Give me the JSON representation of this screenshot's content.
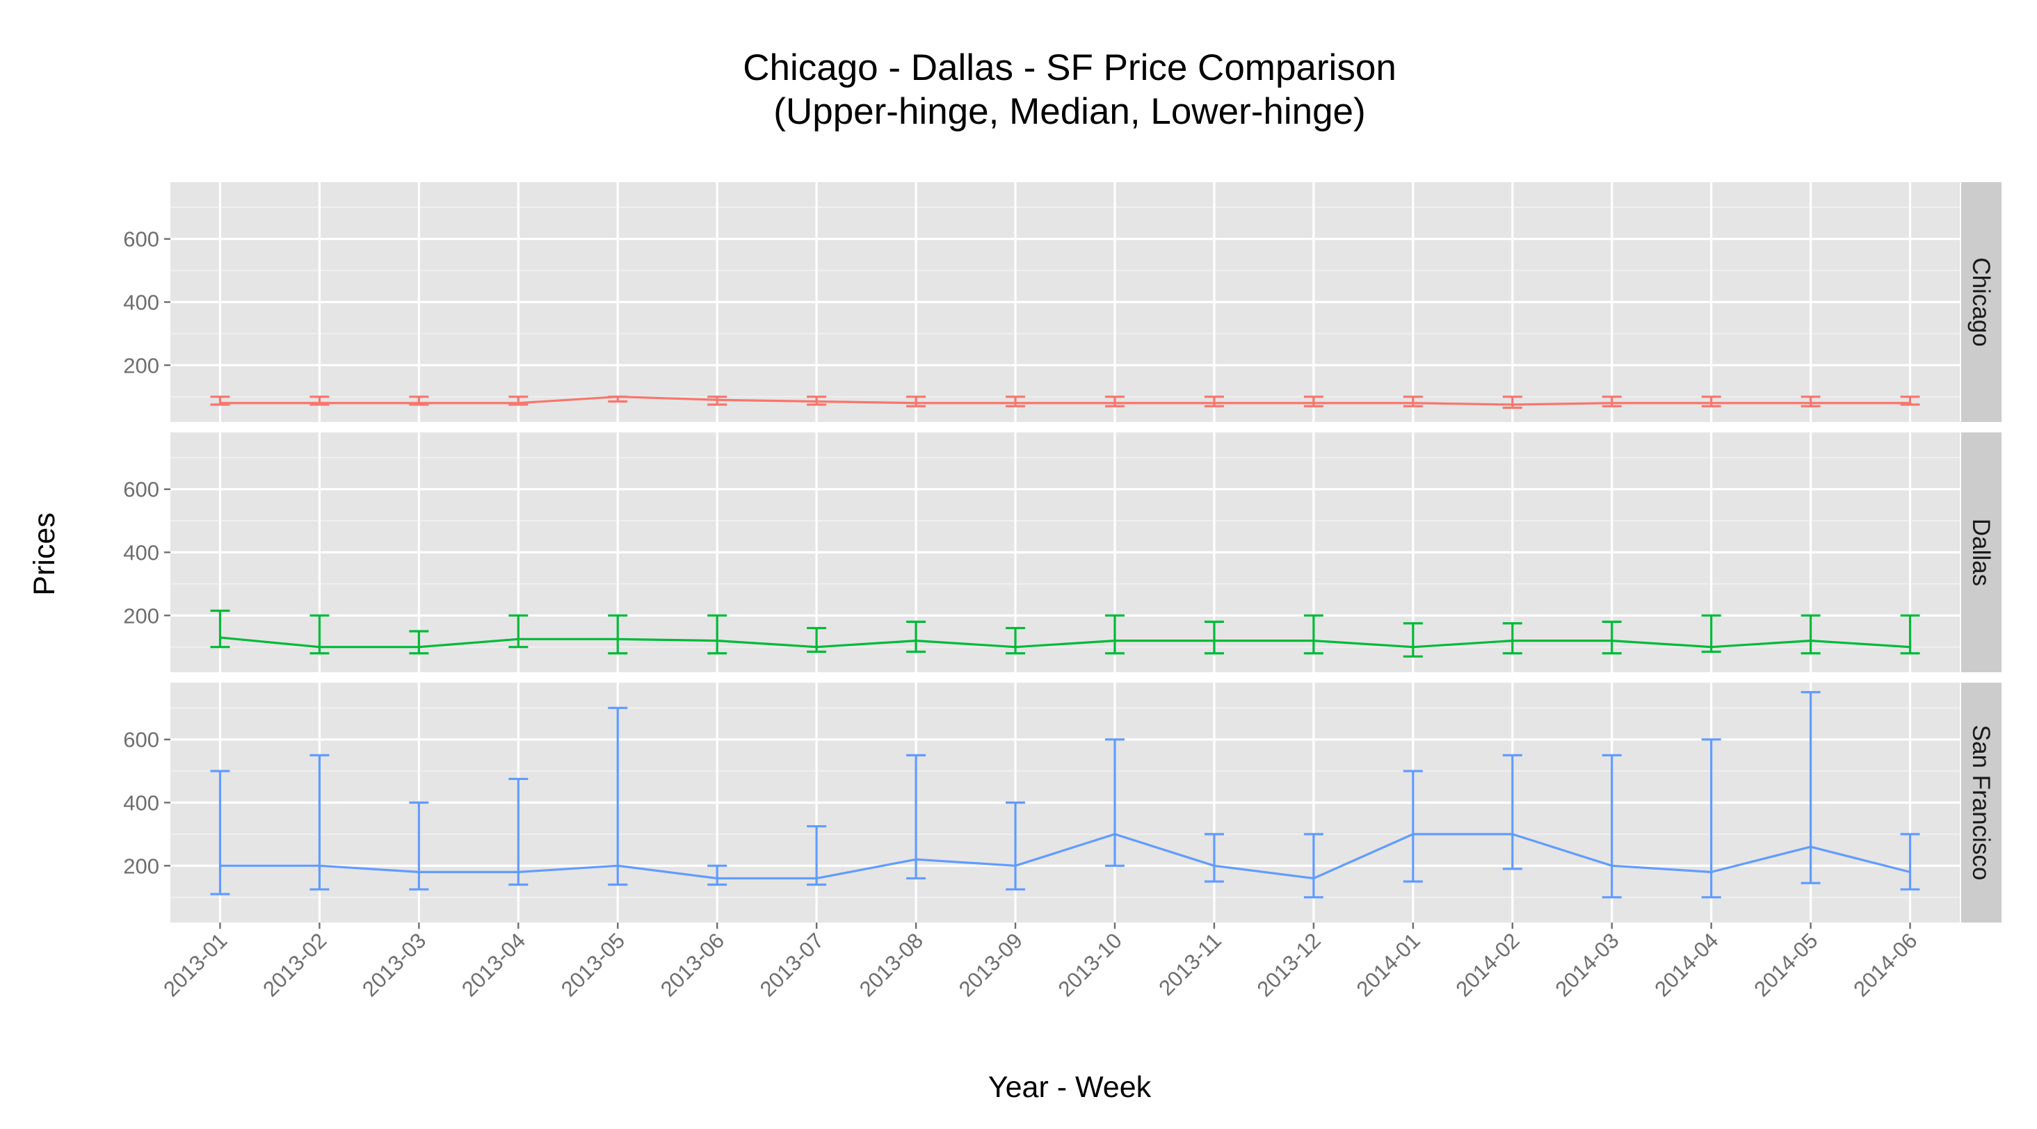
{
  "chart_data": {
    "type": "line",
    "title": "Chicago - Dallas - SF Price Comparison",
    "subtitle": "(Upper-hinge, Median, Lower-hinge)",
    "xlabel": "Year - Week",
    "ylabel": "Prices",
    "ylim": [
      20,
      780
    ],
    "y_ticks": [
      200,
      400,
      600
    ],
    "grid": true,
    "categories": [
      "2013-01",
      "2013-02",
      "2013-03",
      "2013-04",
      "2013-05",
      "2013-06",
      "2013-07",
      "2013-08",
      "2013-09",
      "2013-10",
      "2013-11",
      "2013-12",
      "2014-01",
      "2014-02",
      "2014-03",
      "2014-04",
      "2014-05",
      "2014-06"
    ],
    "facets": [
      {
        "name": "Chicago",
        "color": "#F8766D",
        "median": [
          80,
          80,
          80,
          80,
          100,
          90,
          85,
          80,
          80,
          80,
          80,
          80,
          80,
          75,
          80,
          80,
          80,
          80
        ],
        "upper_hinge": [
          100,
          100,
          100,
          100,
          100,
          100,
          100,
          100,
          100,
          100,
          100,
          100,
          100,
          100,
          100,
          100,
          100,
          100
        ],
        "lower_hinge": [
          75,
          75,
          75,
          75,
          85,
          75,
          75,
          70,
          70,
          70,
          70,
          70,
          70,
          65,
          70,
          70,
          70,
          75
        ]
      },
      {
        "name": "Dallas",
        "color": "#00BA38",
        "median": [
          130,
          100,
          100,
          125,
          125,
          120,
          100,
          120,
          100,
          120,
          120,
          120,
          100,
          120,
          120,
          100,
          120,
          100
        ],
        "upper_hinge": [
          215,
          200,
          150,
          200,
          200,
          200,
          160,
          180,
          160,
          200,
          180,
          200,
          175,
          175,
          180,
          200,
          200,
          200
        ],
        "lower_hinge": [
          100,
          80,
          80,
          100,
          80,
          80,
          85,
          85,
          80,
          80,
          80,
          80,
          70,
          80,
          80,
          85,
          80,
          80
        ]
      },
      {
        "name": "San Francisco",
        "color": "#619CFF",
        "median": [
          200,
          200,
          180,
          180,
          200,
          160,
          160,
          220,
          200,
          300,
          200,
          160,
          300,
          300,
          200,
          180,
          260,
          180
        ],
        "upper_hinge": [
          500,
          550,
          400,
          475,
          700,
          200,
          325,
          550,
          400,
          600,
          300,
          300,
          500,
          550,
          550,
          600,
          750,
          300
        ],
        "lower_hinge": [
          110,
          125,
          125,
          140,
          140,
          140,
          140,
          160,
          125,
          200,
          150,
          100,
          150,
          190,
          100,
          100,
          145,
          125
        ]
      }
    ]
  }
}
